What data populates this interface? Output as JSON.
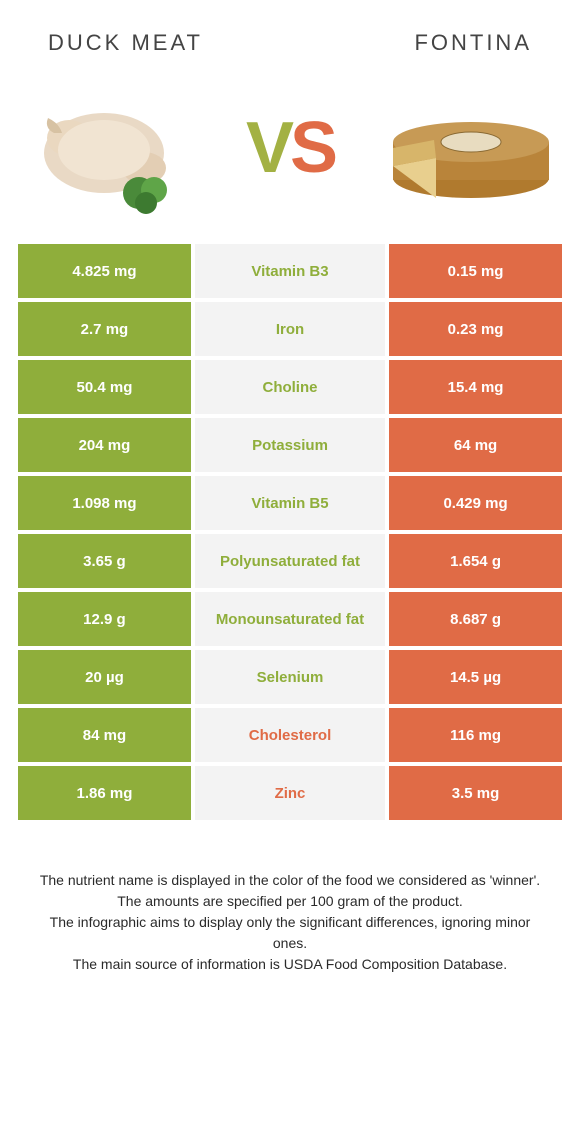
{
  "colors": {
    "green": "#8fae3b",
    "orange": "#e06b46",
    "mid_bg": "#f3f3f3",
    "text": "#333333"
  },
  "titles": {
    "left": "Duck meat",
    "right": "Fontina"
  },
  "vs": {
    "v": "V",
    "s": "S"
  },
  "rows": [
    {
      "left": "4.825 mg",
      "label": "Vitamin B3",
      "right": "0.15 mg",
      "winner": "left"
    },
    {
      "left": "2.7 mg",
      "label": "Iron",
      "right": "0.23 mg",
      "winner": "left"
    },
    {
      "left": "50.4 mg",
      "label": "Choline",
      "right": "15.4 mg",
      "winner": "left"
    },
    {
      "left": "204 mg",
      "label": "Potassium",
      "right": "64 mg",
      "winner": "left"
    },
    {
      "left": "1.098 mg",
      "label": "Vitamin B5",
      "right": "0.429 mg",
      "winner": "left"
    },
    {
      "left": "3.65 g",
      "label": "Polyunsaturated fat",
      "right": "1.654 g",
      "winner": "left"
    },
    {
      "left": "12.9 g",
      "label": "Monounsaturated fat",
      "right": "8.687 g",
      "winner": "left"
    },
    {
      "left": "20 µg",
      "label": "Selenium",
      "right": "14.5 µg",
      "winner": "left"
    },
    {
      "left": "84 mg",
      "label": "Cholesterol",
      "right": "116 mg",
      "winner": "right"
    },
    {
      "left": "1.86 mg",
      "label": "Zinc",
      "right": "3.5 mg",
      "winner": "right"
    }
  ],
  "footnotes": [
    "The nutrient name is displayed in the color of the food we considered as 'winner'.",
    "The amounts are specified per 100 gram of the product.",
    "The infographic aims to display only the significant differences, ignoring minor ones.",
    "The main source of information is USDA Food Composition Database."
  ]
}
